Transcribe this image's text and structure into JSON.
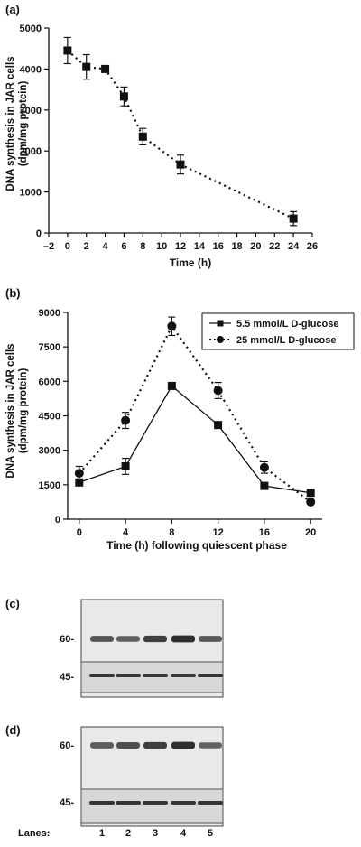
{
  "chart_data": [
    {
      "panel": "(a)",
      "type": "scatter",
      "xlabel": "Time (h)",
      "ylabel_line1": "DNA synthesis in JAR cells",
      "ylabel_line2": "(dpm/mg protein)",
      "xlim": [
        -2,
        26
      ],
      "ylim": [
        0,
        5000
      ],
      "xticks": [
        -2,
        0,
        2,
        4,
        6,
        8,
        10,
        12,
        14,
        16,
        18,
        20,
        22,
        24,
        26
      ],
      "xtick_labels": [
        "–2",
        "0",
        "2",
        "4",
        "6",
        "8",
        "10",
        "12",
        "14",
        "16",
        "18",
        "20",
        "22",
        "24",
        "26"
      ],
      "yticks": [
        0,
        1000,
        2000,
        3000,
        4000,
        5000
      ],
      "ytick_labels": [
        "0",
        "1000",
        "2000",
        "3000",
        "4000",
        "5000"
      ],
      "series": [
        {
          "marker": "square",
          "line": "dotted",
          "x": [
            0,
            2,
            4,
            6,
            8,
            12,
            24
          ],
          "y": [
            4450,
            4050,
            4000,
            3330,
            2350,
            1670,
            350
          ],
          "err": [
            320,
            300,
            60,
            230,
            200,
            230,
            170
          ]
        }
      ]
    },
    {
      "panel": "(b)",
      "type": "line",
      "xlabel": "Time (h) following quiescent phase",
      "ylabel_line1": "DNA synthesis in JAR cells",
      "ylabel_line2": "(dpm/mg protein)",
      "xlim": [
        -1,
        21
      ],
      "ylim": [
        0,
        9000
      ],
      "xticks": [
        0,
        4,
        8,
        12,
        16,
        20
      ],
      "xtick_labels": [
        "0",
        "4",
        "8",
        "12",
        "16",
        "20"
      ],
      "yticks": [
        0,
        1500,
        3000,
        4500,
        6000,
        7500,
        9000
      ],
      "ytick_labels": [
        "0",
        "1500",
        "3000",
        "4500",
        "6000",
        "7500",
        "9000"
      ],
      "legend_position": "top-right",
      "series": [
        {
          "name": "5.5 mmol/L D-glucose",
          "marker": "square",
          "line": "solid",
          "x": [
            0,
            4,
            8,
            12,
            16,
            20
          ],
          "y": [
            1600,
            2300,
            5800,
            4100,
            1450,
            1150
          ],
          "err": [
            120,
            350,
            100,
            100,
            100,
            100
          ]
        },
        {
          "name": "25 mmol/L D-glucose",
          "marker": "circle",
          "line": "dotted",
          "x": [
            0,
            4,
            8,
            12,
            16,
            20
          ],
          "y": [
            2000,
            4300,
            8400,
            5600,
            2250,
            750
          ],
          "err": [
            300,
            350,
            400,
            350,
            250,
            100
          ]
        }
      ]
    }
  ],
  "blots": [
    {
      "panel": "(c)",
      "marker_upper": "60-",
      "marker_lower": "45-",
      "upper_intensity": [
        0.62,
        0.52,
        0.78,
        0.92,
        0.58
      ],
      "lower_intensity": [
        0.85,
        0.82,
        0.8,
        0.8,
        0.84
      ]
    },
    {
      "panel": "(d)",
      "marker_upper": "60-",
      "marker_lower": "45-",
      "upper_intensity": [
        0.55,
        0.65,
        0.78,
        0.92,
        0.5
      ],
      "lower_intensity": [
        0.85,
        0.84,
        0.83,
        0.83,
        0.84
      ]
    }
  ],
  "lanes_label": "Lanes:",
  "lane_numbers": [
    "1",
    "2",
    "3",
    "4",
    "5"
  ],
  "colors": {
    "ink": "#111111",
    "blot_bg": "#e9e9e9",
    "blot_band": "#1a1a1a"
  }
}
